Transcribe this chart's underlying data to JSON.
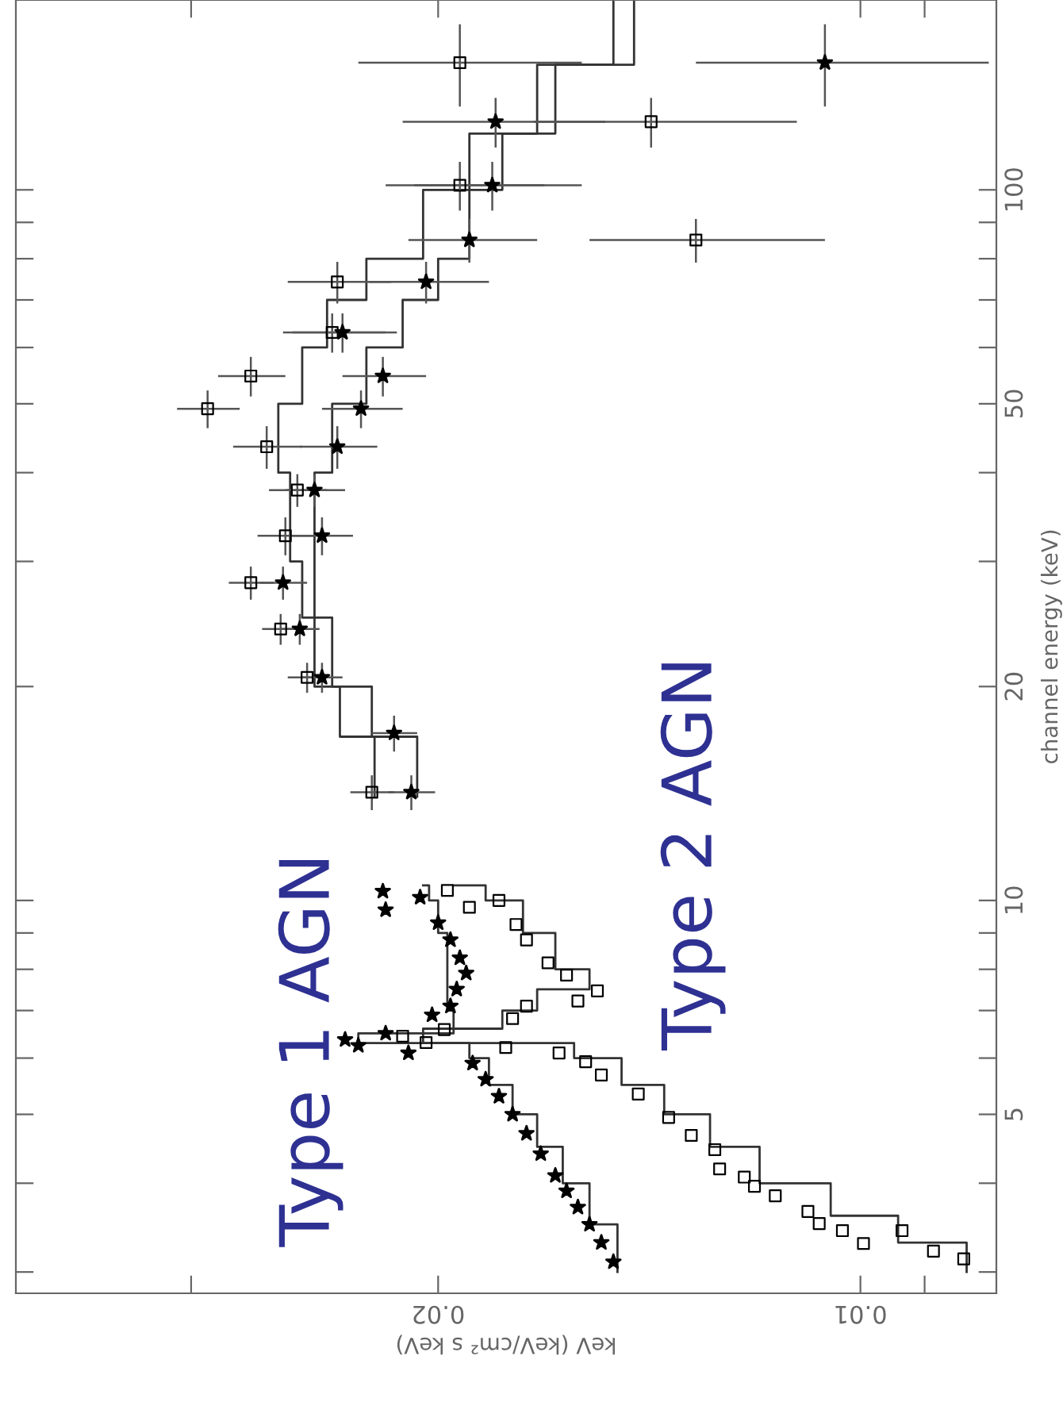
{
  "chart_data": {
    "type": "scatter",
    "xlabel": "keV (keV/cm² s keV)",
    "ylabel": "channel energy (keV)",
    "log": "xy",
    "grid": false,
    "legend": false,
    "xlim": [
      0.04,
      0.008
    ],
    "xticks": [
      {
        "value": 0.009,
        "label": null
      },
      0.01,
      0.02,
      {
        "value": 0.03,
        "label": null
      }
    ],
    "ylim": [
      2.8,
      185
    ],
    "yticks": [
      {
        "value": 3,
        "label": null
      },
      {
        "value": 4,
        "label": null
      },
      5,
      {
        "value": 6,
        "label": null
      },
      {
        "value": 7,
        "label": null
      },
      {
        "value": 8,
        "label": null
      },
      {
        "value": 9,
        "label": null
      },
      10,
      20,
      {
        "value": 30,
        "label": null
      },
      {
        "value": 40,
        "label": null
      },
      50,
      {
        "value": 60,
        "label": null
      },
      {
        "value": 70,
        "label": null
      },
      {
        "value": 80,
        "label": null
      },
      {
        "value": 90,
        "label": null
      },
      100
    ],
    "annotations": [
      "Type 1 AGN",
      "Type 2 AGN"
    ],
    "series": [
      {
        "type": "step",
        "color": "#333333",
        "x": [
          0.0149,
          0.0156,
          0.0163,
          0.017,
          0.0177,
          0.0184,
          0.019,
          0.0228,
          0.0195,
          0.0197,
          0.0197,
          0.02,
          0.0203,
          0.0205
        ],
        "values": [
          3.0,
          3.5,
          4.0,
          4.5,
          5.0,
          5.5,
          6.0,
          6.3,
          6.5,
          7.0,
          8.0,
          9.0,
          10.0,
          10.5
        ]
      },
      {
        "type": "step",
        "color": "#333333",
        "x": [
          0.0207,
          0.0223,
          0.0238,
          0.0245,
          0.0245,
          0.0238,
          0.0225,
          0.0212,
          0.02,
          0.019,
          0.018,
          0.017,
          0.015,
          0.015
        ],
        "values": [
          14,
          17,
          20,
          25,
          30,
          40,
          50,
          60,
          70,
          80,
          100,
          120,
          150,
          185
        ]
      },
      {
        "type": "step",
        "color": "#333333",
        "x": [
          0.0084,
          0.0094,
          0.0105,
          0.0118,
          0.0128,
          0.0138,
          0.0148,
          0.016,
          0.0205,
          0.018,
          0.017,
          0.0156,
          0.0165,
          0.0174,
          0.0185,
          0.0195
        ],
        "values": [
          3.0,
          3.3,
          3.6,
          4.0,
          4.5,
          5.0,
          5.5,
          6.0,
          6.3,
          6.6,
          7.0,
          7.5,
          8.0,
          9.0,
          10.0,
          10.5
        ]
      },
      {
        "type": "step",
        "color": "#333333",
        "x": [
          0.0222,
          0.0235,
          0.0245,
          0.025,
          0.0255,
          0.026,
          0.025,
          0.024,
          0.0225,
          0.0205,
          0.019,
          0.0165,
          0.0145,
          0.0145
        ],
        "values": [
          14,
          17,
          20,
          25,
          30,
          40,
          50,
          60,
          70,
          80,
          100,
          120,
          150,
          185
        ]
      },
      {
        "color": "#000000",
        "marker": "star",
        "x": [
          0.015,
          0.0153,
          0.0156,
          0.0159,
          0.0162,
          0.0165,
          0.0169,
          0.0173,
          0.0177,
          0.0181,
          0.0185,
          0.0189,
          0.021,
          0.0228,
          0.0233,
          0.0218,
          0.0202,
          0.0196,
          0.0194,
          0.0191,
          0.0193,
          0.0196,
          0.02,
          0.0218,
          0.0206,
          0.0219,
          0.0209,
          0.0215,
          0.0242,
          0.0251,
          0.0258,
          0.0242,
          0.0245,
          0.0236,
          0.0227,
          0.0219,
          0.0234,
          0.0204,
          0.019,
          0.0183,
          0.0182,
          0.0106
        ],
        "values": [
          3.1,
          3.3,
          3.5,
          3.7,
          3.9,
          4.1,
          4.4,
          4.7,
          5.0,
          5.3,
          5.6,
          5.9,
          6.1,
          6.25,
          6.37,
          6.5,
          6.9,
          7.1,
          7.5,
          7.9,
          8.3,
          8.8,
          9.3,
          9.7,
          10.1,
          10.3,
          14.2,
          17.2,
          20.6,
          24.1,
          28.0,
          32.6,
          37.8,
          43.5,
          49.2,
          54.7,
          63.0,
          74.2,
          85.0,
          101.5,
          124.7,
          151
        ],
        "xerrors": [
          null,
          null,
          null,
          null,
          null,
          null,
          null,
          null,
          null,
          null,
          null,
          null,
          null,
          null,
          null,
          null,
          null,
          null,
          null,
          null,
          null,
          null,
          null,
          null,
          null,
          null,
          0.0008,
          0.0008,
          0.0008,
          0.0008,
          0.001,
          0.0012,
          0.0012,
          0.0015,
          0.0015,
          0.0015,
          0.002,
          0.002,
          0.002,
          0.0025,
          0.003,
          0.0025
        ],
        "errors": [
          null,
          null,
          null,
          null,
          null,
          null,
          null,
          null,
          null,
          null,
          null,
          null,
          null,
          null,
          null,
          null,
          null,
          null,
          null,
          null,
          null,
          null,
          null,
          null,
          null,
          null,
          0.8,
          1,
          1,
          1.2,
          1.5,
          2,
          2,
          3,
          3,
          3.5,
          4,
          5,
          6,
          8,
          10,
          20
        ]
      },
      {
        "color": "#000000",
        "marker": "square",
        "x": [
          0.00844,
          0.00887,
          0.00995,
          0.00934,
          0.0103,
          0.0107,
          0.0109,
          0.0115,
          0.0119,
          0.0121,
          0.0126,
          0.0127,
          0.0132,
          0.0137,
          0.0144,
          0.0153,
          0.0157,
          0.0164,
          0.0179,
          0.0204,
          0.0212,
          0.0198,
          0.0177,
          0.0173,
          0.0159,
          0.0154,
          0.0162,
          0.0167,
          0.0173,
          0.0176,
          0.019,
          0.0181,
          0.0197,
          0.0223,
          0.0248,
          0.0259,
          0.0272,
          0.0257,
          0.0252,
          0.0265,
          0.0292,
          0.0272,
          0.0238,
          0.0236,
          0.0131,
          0.0193,
          0.0141,
          0.0193
        ],
        "values": [
          3.13,
          3.21,
          3.29,
          3.43,
          3.43,
          3.51,
          3.65,
          3.84,
          3.96,
          4.08,
          4.19,
          4.46,
          4.67,
          4.95,
          5.34,
          5.68,
          5.93,
          6.1,
          6.21,
          6.31,
          6.44,
          6.58,
          6.82,
          7.1,
          7.22,
          7.46,
          7.85,
          8.17,
          8.8,
          9.25,
          9.78,
          10.0,
          10.33,
          14.2,
          20.6,
          24.1,
          28.0,
          32.6,
          37.8,
          43.5,
          49.2,
          54.7,
          63.0,
          74.2,
          85.0,
          101.5,
          124.7,
          151
        ],
        "xerrors": [
          null,
          null,
          null,
          null,
          null,
          null,
          null,
          null,
          null,
          null,
          null,
          null,
          null,
          null,
          null,
          null,
          null,
          null,
          null,
          null,
          null,
          null,
          null,
          null,
          null,
          null,
          null,
          null,
          null,
          null,
          null,
          null,
          null,
          0.0008,
          0.0008,
          0.0008,
          0.001,
          0.0012,
          0.0012,
          0.0015,
          0.0015,
          0.0015,
          0.002,
          0.002,
          0.0025,
          0.0025,
          0.003,
          0.0035
        ],
        "errors": [
          null,
          null,
          null,
          null,
          null,
          null,
          null,
          null,
          null,
          null,
          null,
          null,
          null,
          null,
          null,
          null,
          null,
          null,
          null,
          null,
          null,
          null,
          null,
          null,
          null,
          null,
          null,
          null,
          null,
          null,
          null,
          null,
          null,
          0.8,
          1,
          1.2,
          1.5,
          2,
          2,
          3,
          3,
          3.5,
          4,
          5,
          6,
          8,
          10,
          20
        ]
      }
    ]
  }
}
